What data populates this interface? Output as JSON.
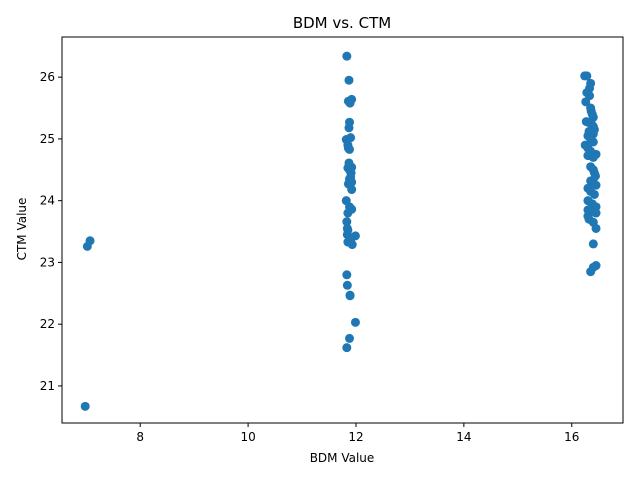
{
  "chart_data": {
    "type": "scatter",
    "title": "BDM vs. CTM",
    "xlabel": "BDM Value",
    "ylabel": "CTM Value",
    "xlim": [
      6.55,
      16.95
    ],
    "ylim": [
      20.4,
      26.65
    ],
    "xticks": [
      8,
      10,
      12,
      14,
      16
    ],
    "yticks": [
      21,
      22,
      23,
      24,
      25,
      26
    ],
    "grid": false,
    "colors": {
      "marker": "#1f77b4"
    },
    "series": [
      {
        "x": [
          6.98,
          7.02,
          7.07,
          11.83,
          11.87,
          11.86,
          11.89,
          11.92,
          11.88,
          11.87,
          11.82,
          11.9,
          11.85,
          11.86,
          11.88,
          11.87,
          11.92,
          11.85,
          11.89,
          11.91,
          11.9,
          11.88,
          11.92,
          11.86,
          11.92,
          11.82,
          11.88,
          11.92,
          11.85,
          11.83,
          11.84,
          11.85,
          11.84,
          11.99,
          11.9,
          11.85,
          11.93,
          11.83,
          11.84,
          11.89,
          11.89,
          11.99,
          11.88,
          11.83,
          16.24,
          16.28,
          16.35,
          16.33,
          16.28,
          16.33,
          16.26,
          16.35,
          16.36,
          16.38,
          16.4,
          16.27,
          16.3,
          16.36,
          16.38,
          16.4,
          16.42,
          16.32,
          16.36,
          16.4,
          16.3,
          16.35,
          16.4,
          16.25,
          16.3,
          16.35,
          16.45,
          16.3,
          16.37,
          16.4,
          16.35,
          16.4,
          16.42,
          16.44,
          16.35,
          16.4,
          16.45,
          16.3,
          16.35,
          16.42,
          16.3,
          16.38,
          16.45,
          16.3,
          16.35,
          16.45,
          16.3,
          16.32,
          16.4,
          16.45,
          16.4,
          16.45,
          16.4,
          16.35
        ],
        "y": [
          20.67,
          23.26,
          23.35,
          26.34,
          25.95,
          25.61,
          25.58,
          25.64,
          25.27,
          25.18,
          24.99,
          25.02,
          24.9,
          24.85,
          24.83,
          24.61,
          24.54,
          24.53,
          24.48,
          24.45,
          24.38,
          24.35,
          24.3,
          24.27,
          24.18,
          24.0,
          23.9,
          23.86,
          23.8,
          23.66,
          23.55,
          23.52,
          23.45,
          23.43,
          23.36,
          23.33,
          23.29,
          22.8,
          22.63,
          22.47,
          22.46,
          22.03,
          21.77,
          21.62,
          26.02,
          26.02,
          25.9,
          25.82,
          25.75,
          25.7,
          25.6,
          25.5,
          25.45,
          25.4,
          25.35,
          25.28,
          25.27,
          25.25,
          25.22,
          25.2,
          25.15,
          25.12,
          25.1,
          25.08,
          25.05,
          25.0,
          24.95,
          24.9,
          24.85,
          24.8,
          24.75,
          24.73,
          24.72,
          24.7,
          24.55,
          24.5,
          24.45,
          24.4,
          24.32,
          24.3,
          24.25,
          24.2,
          24.15,
          24.1,
          24.0,
          23.95,
          23.9,
          23.85,
          23.82,
          23.8,
          23.75,
          23.7,
          23.65,
          23.55,
          23.3,
          22.95,
          22.92,
          22.85
        ]
      }
    ]
  }
}
